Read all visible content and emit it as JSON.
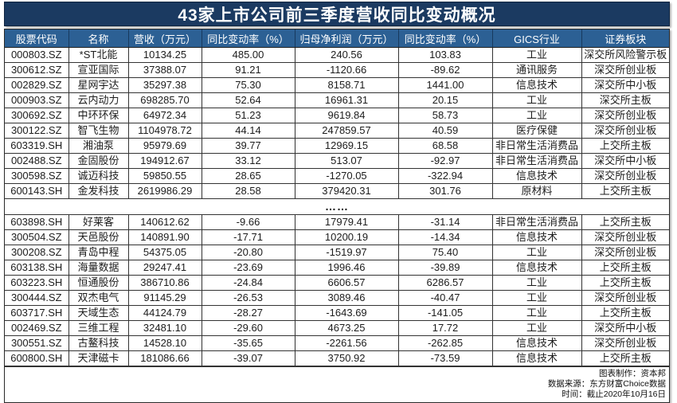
{
  "colors": {
    "title_bg": "#1B3A61",
    "header_bg": "#2C6094",
    "header_text": "#FFFFFF",
    "body_text": "#1C1C1C",
    "grid_border": "#333333"
  },
  "chart_data": {
    "type": "table",
    "title": "43家上市公司前三季度营收同比变动概况",
    "columns": [
      "股票代码",
      "名称",
      "营收（万元）",
      "同比变动率（%）",
      "归母净利润（万元）",
      "同比变动率（%）",
      "GICS行业",
      "证券板块"
    ],
    "separator": "……",
    "rows_top": [
      [
        "000803.SZ",
        "*ST北能",
        "10134.25",
        "485.00",
        "240.56",
        "103.83",
        "工业",
        "深交所风险警示板"
      ],
      [
        "300612.SZ",
        "宣亚国际",
        "37388.07",
        "91.21",
        "-1120.66",
        "-89.62",
        "通讯服务",
        "深交所创业板"
      ],
      [
        "002829.SZ",
        "星网宇达",
        "35297.38",
        "75.30",
        "8158.71",
        "1441.00",
        "信息技术",
        "深交所中小板"
      ],
      [
        "000903.SZ",
        "云内动力",
        "698285.70",
        "52.64",
        "16961.31",
        "20.15",
        "工业",
        "深交所主板"
      ],
      [
        "300692.SZ",
        "中环环保",
        "64972.34",
        "51.23",
        "9619.84",
        "58.73",
        "工业",
        "深交所创业板"
      ],
      [
        "300122.SZ",
        "智飞生物",
        "1104978.72",
        "44.14",
        "247859.57",
        "40.59",
        "医疗保健",
        "深交所创业板"
      ],
      [
        "603319.SH",
        "湘油泵",
        "95979.69",
        "39.77",
        "12969.15",
        "68.58",
        "非日常生活消费品",
        "上交所主板"
      ],
      [
        "002488.SZ",
        "金固股份",
        "194912.67",
        "33.12",
        "513.07",
        "-92.97",
        "非日常生活消费品",
        "深交所中小板"
      ],
      [
        "300598.SZ",
        "诚迈科技",
        "59850.55",
        "28.65",
        "-1270.05",
        "-322.94",
        "信息技术",
        "深交所创业板"
      ],
      [
        "600143.SH",
        "金发科技",
        "2619986.29",
        "28.58",
        "379420.31",
        "301.76",
        "原材料",
        "上交所主板"
      ]
    ],
    "rows_bottom": [
      [
        "603898.SH",
        "好莱客",
        "140612.62",
        "-9.66",
        "17979.41",
        "-31.14",
        "非日常生活消费品",
        "上交所主板"
      ],
      [
        "300504.SZ",
        "天邑股份",
        "140891.90",
        "-17.71",
        "10200.19",
        "-14.34",
        "信息技术",
        "深交所创业板"
      ],
      [
        "300208.SZ",
        "青岛中程",
        "54375.05",
        "-20.80",
        "-1519.97",
        "75.40",
        "工业",
        "深交所创业板"
      ],
      [
        "603138.SH",
        "海量数据",
        "29247.41",
        "-23.69",
        "1996.46",
        "-39.89",
        "信息技术",
        "上交所主板"
      ],
      [
        "603223.SH",
        "恒通股份",
        "386710.86",
        "-24.84",
        "6606.57",
        "6286.57",
        "工业",
        "上交所主板"
      ],
      [
        "300444.SZ",
        "双杰电气",
        "91145.29",
        "-26.53",
        "3089.46",
        "-40.47",
        "工业",
        "深交所创业板"
      ],
      [
        "603717.SH",
        "天域生态",
        "44124.79",
        "-28.27",
        "-1643.69",
        "-141.05",
        "工业",
        "上交所主板"
      ],
      [
        "002469.SZ",
        "三维工程",
        "32481.10",
        "-29.60",
        "4673.25",
        "17.72",
        "工业",
        "深交所中小板"
      ],
      [
        "300551.SZ",
        "古鳌科技",
        "14528.10",
        "-35.65",
        "-2261.56",
        "-262.85",
        "信息技术",
        "深交所创业板"
      ],
      [
        "600800.SH",
        "天津磁卡",
        "181086.66",
        "-39.07",
        "3750.92",
        "-73.59",
        "信息技术",
        "上交所主板"
      ]
    ],
    "annotations": [
      "图表制作：资本邦",
      "数据来源：东方财富Choice数据",
      "时间：截止2020年10月16日"
    ]
  }
}
